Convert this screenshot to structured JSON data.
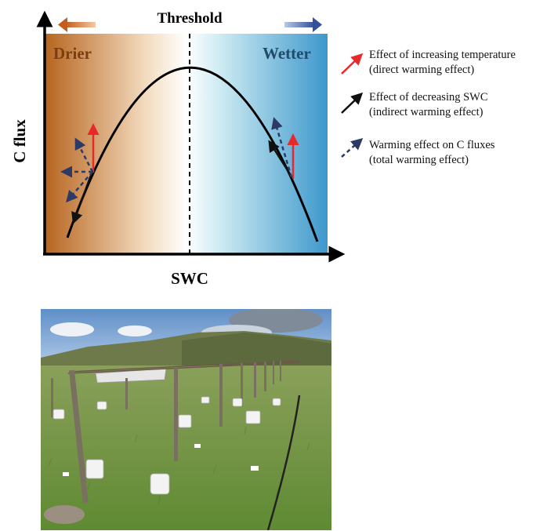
{
  "diagram": {
    "threshold_label": "Threshold",
    "left_region_label": "Drier",
    "right_region_label": "Wetter",
    "y_axis_label": "C flux",
    "x_axis_label": "SWC",
    "colors": {
      "drier_gradient": "#b7651f",
      "wetter_gradient": "#3e98cc",
      "red_arrow": "#e8292b",
      "black_arrow": "#111111",
      "dashed_arrow": "#2e3a66",
      "left_top_arrow": "#c86a28",
      "right_top_arrow": "#3c5aa0"
    },
    "legend": [
      {
        "line1": "Effect of increasing temperature",
        "line2": "(direct warming effect)",
        "style": "red-solid"
      },
      {
        "line1": "Effect of decreasing SWC",
        "line2": "(indirect warming effect)",
        "style": "black-solid"
      },
      {
        "line1": "Warming effect on C fluxes",
        "line2": "(total warming effect)",
        "style": "blue-dashed"
      }
    ]
  },
  "photo": {
    "subject": "field warming experiment on grassland with metal posts, shelters and white chambers",
    "colors": {
      "sky": "#8fb4dc",
      "hills": "#6f7a4a",
      "grass": "#6f9a3c"
    }
  }
}
